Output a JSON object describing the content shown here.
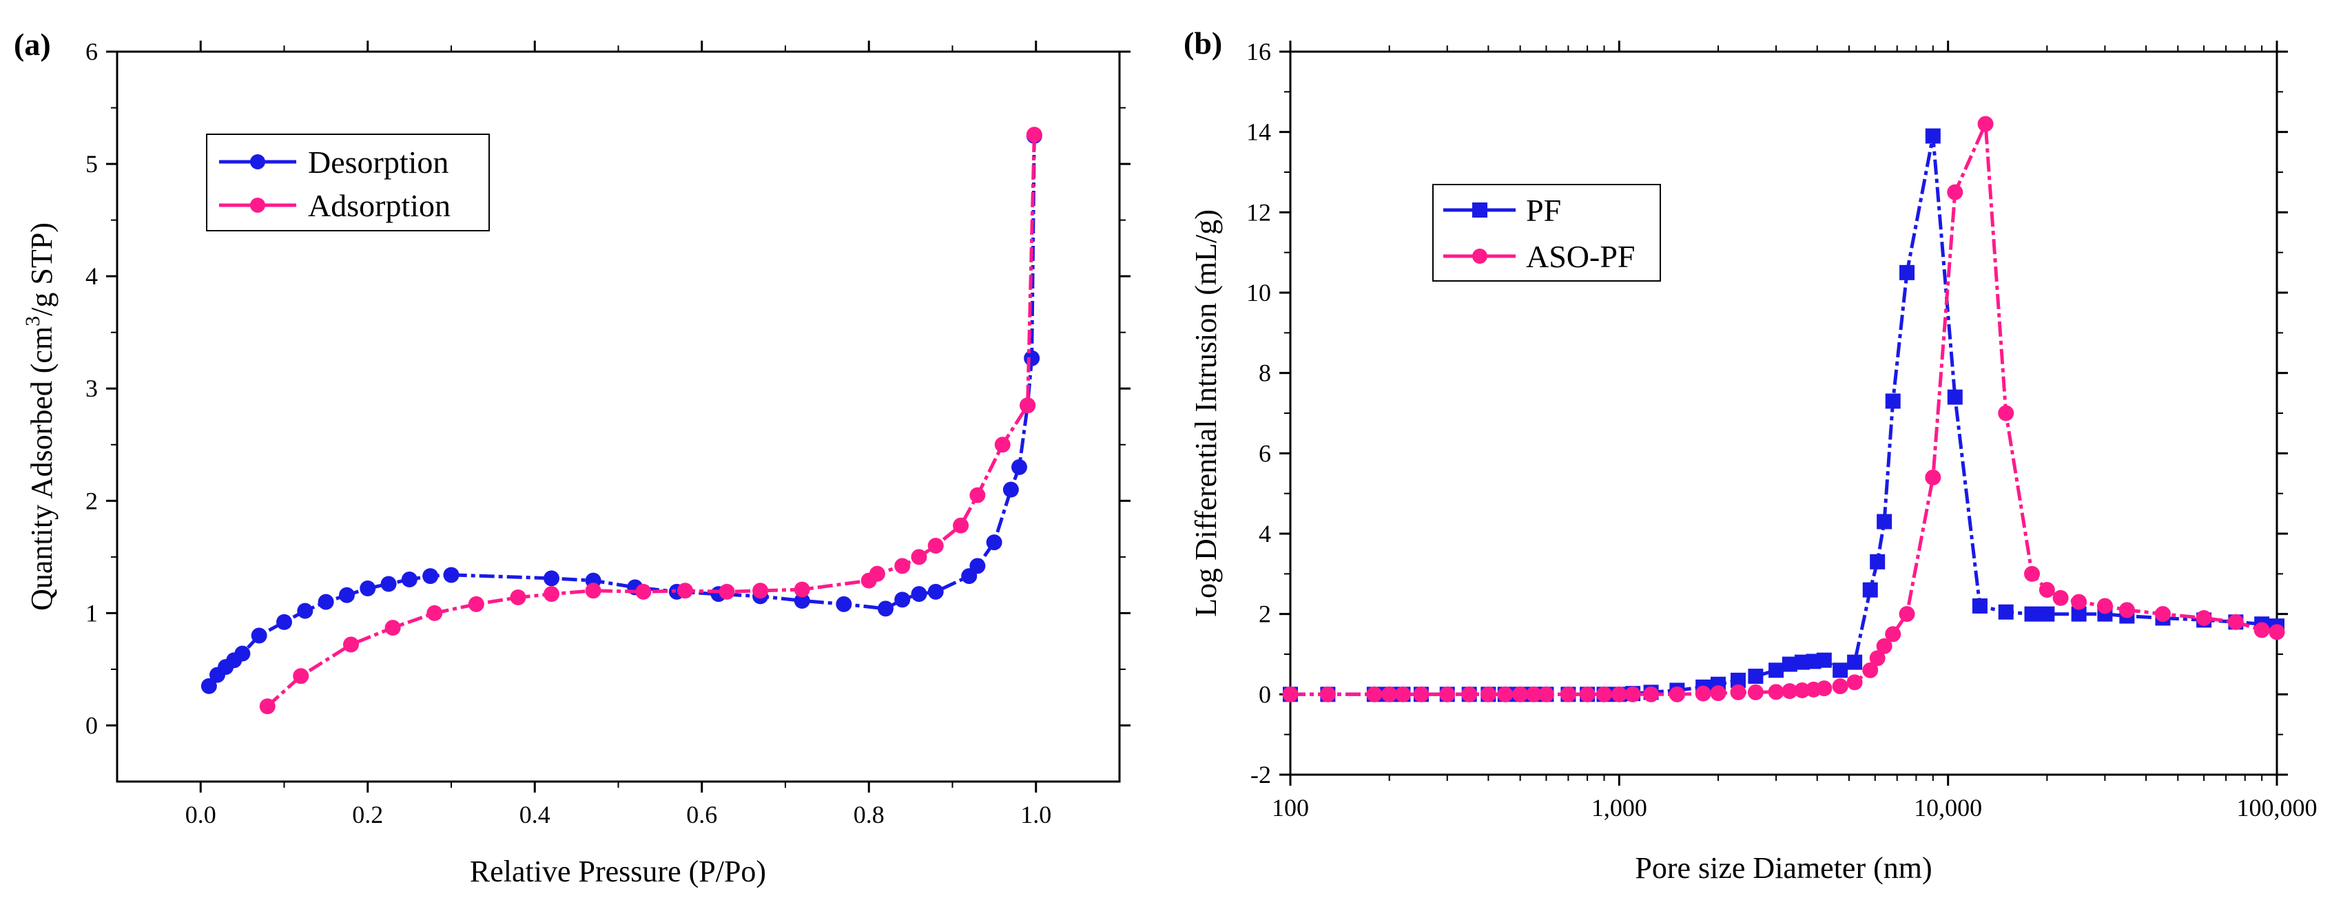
{
  "chart_data": [
    {
      "type": "line",
      "panel_label": "(a)",
      "xlabel": "Relative Pressure (P/Po)",
      "ylabel_prefix": "Quantity Adsorbed (cm",
      "ylabel_sup": "3",
      "ylabel_suffix": "/g STP)",
      "xlim": [
        -0.1,
        1.1
      ],
      "ylim": [
        -0.5,
        6
      ],
      "xticks": [
        0.0,
        0.2,
        0.4,
        0.6,
        0.8,
        1.0
      ],
      "xtick_labels": [
        "0.0",
        "0.2",
        "0.4",
        "0.6",
        "0.8",
        "1.0"
      ],
      "yticks": [
        0,
        1,
        2,
        3,
        4,
        5,
        6
      ],
      "ytick_labels": [
        "0",
        "1",
        "2",
        "3",
        "4",
        "5",
        "6"
      ],
      "legend_position": "top-left",
      "series": [
        {
          "name": "Desorption",
          "color": "#1a1ae6",
          "marker": "circle",
          "x": [
            0.01,
            0.02,
            0.03,
            0.04,
            0.05,
            0.07,
            0.1,
            0.125,
            0.15,
            0.175,
            0.2,
            0.225,
            0.25,
            0.275,
            0.3,
            0.42,
            0.47,
            0.52,
            0.57,
            0.62,
            0.67,
            0.72,
            0.77,
            0.82,
            0.84,
            0.86,
            0.88,
            0.92,
            0.93,
            0.95,
            0.97,
            0.98,
            0.99,
            0.995,
            0.998
          ],
          "y": [
            0.35,
            0.45,
            0.52,
            0.58,
            0.64,
            0.8,
            0.92,
            1.02,
            1.1,
            1.16,
            1.22,
            1.26,
            1.3,
            1.33,
            1.34,
            1.31,
            1.29,
            1.23,
            1.19,
            1.17,
            1.15,
            1.11,
            1.08,
            1.04,
            1.12,
            1.17,
            1.19,
            1.33,
            1.42,
            1.63,
            2.1,
            2.3,
            2.85,
            3.27,
            5.25
          ]
        },
        {
          "name": "Adsorption",
          "color": "#ff1a8c",
          "marker": "circle",
          "x": [
            0.08,
            0.12,
            0.18,
            0.23,
            0.28,
            0.33,
            0.38,
            0.42,
            0.47,
            0.53,
            0.58,
            0.63,
            0.67,
            0.72,
            0.8,
            0.81,
            0.84,
            0.86,
            0.88,
            0.91,
            0.93,
            0.96,
            0.99,
            0.998
          ],
          "y": [
            0.17,
            0.44,
            0.72,
            0.87,
            1.0,
            1.08,
            1.14,
            1.17,
            1.2,
            1.19,
            1.2,
            1.19,
            1.2,
            1.21,
            1.29,
            1.35,
            1.42,
            1.5,
            1.6,
            1.78,
            2.05,
            2.5,
            2.85,
            5.26
          ]
        }
      ]
    },
    {
      "type": "line",
      "panel_label": "(b)",
      "xscale": "log",
      "xlabel": "Pore size Diameter (nm)",
      "ylabel": "Log Differential Intrusion (mL/g)",
      "xlim": [
        100,
        100000
      ],
      "ylim": [
        -2,
        16
      ],
      "xticks": [
        100,
        1000,
        10000,
        100000
      ],
      "xtick_labels": [
        "100",
        "1,000",
        "10,000",
        "100,000"
      ],
      "yticks": [
        -2,
        0,
        2,
        4,
        6,
        8,
        10,
        12,
        14,
        16
      ],
      "ytick_labels": [
        "-2",
        "0",
        "2",
        "4",
        "6",
        "8",
        "10",
        "12",
        "14",
        "16"
      ],
      "legend_position": "left",
      "series": [
        {
          "name": "PF",
          "color": "#1a1ae6",
          "marker": "square",
          "x": [
            100,
            130,
            180,
            200,
            220,
            250,
            300,
            350,
            400,
            450,
            500,
            550,
            600,
            700,
            800,
            900,
            1000,
            1100,
            1250,
            1500,
            1800,
            2000,
            2300,
            2600,
            3000,
            3300,
            3600,
            3900,
            4200,
            4700,
            5200,
            5800,
            6100,
            6400,
            6800,
            7500,
            9000,
            10500,
            12500,
            15000,
            18000,
            20000,
            25000,
            30000,
            35000,
            45000,
            60000,
            75000,
            90000,
            100000
          ],
          "y": [
            0,
            0,
            0,
            0,
            0,
            0,
            0,
            0,
            0,
            0,
            0,
            0,
            0,
            0,
            0,
            0,
            0,
            0.02,
            0.05,
            0.1,
            0.18,
            0.25,
            0.35,
            0.45,
            0.6,
            0.75,
            0.8,
            0.82,
            0.85,
            0.6,
            0.8,
            2.6,
            3.3,
            4.3,
            7.3,
            10.5,
            13.9,
            7.4,
            2.2,
            2.05,
            2.0,
            2.0,
            2.0,
            2.0,
            1.95,
            1.9,
            1.85,
            1.8,
            1.75,
            1.7
          ]
        },
        {
          "name": "ASO-PF",
          "color": "#ff1a8c",
          "marker": "circle",
          "x": [
            100,
            130,
            180,
            200,
            220,
            250,
            300,
            350,
            400,
            450,
            500,
            550,
            600,
            700,
            800,
            900,
            1000,
            1100,
            1250,
            1500,
            1800,
            2000,
            2300,
            2600,
            3000,
            3300,
            3600,
            3900,
            4200,
            4700,
            5200,
            5800,
            6100,
            6400,
            6800,
            7500,
            9000,
            10500,
            13000,
            15000,
            18000,
            20000,
            22000,
            25000,
            30000,
            35000,
            45000,
            60000,
            75000,
            90000,
            100000
          ],
          "y": [
            0,
            0,
            0,
            0,
            0,
            0,
            0,
            0,
            0,
            0,
            0,
            0,
            0,
            0,
            0,
            0,
            0,
            0,
            0,
            0,
            0.02,
            0.03,
            0.05,
            0.05,
            0.06,
            0.08,
            0.1,
            0.12,
            0.15,
            0.2,
            0.3,
            0.6,
            0.9,
            1.2,
            1.5,
            2.0,
            5.4,
            12.5,
            14.2,
            7.0,
            3.0,
            2.6,
            2.4,
            2.3,
            2.2,
            2.1,
            2.0,
            1.9,
            1.8,
            1.6,
            1.55
          ]
        }
      ]
    }
  ]
}
